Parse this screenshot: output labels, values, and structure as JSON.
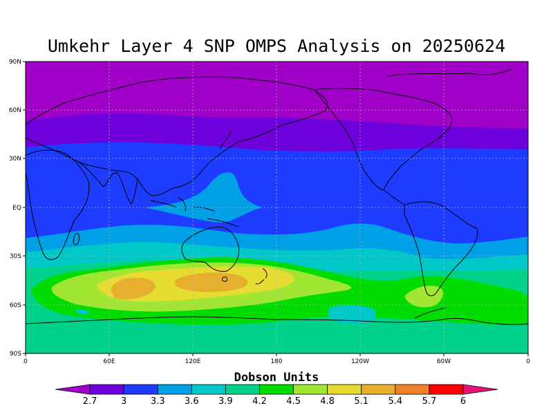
{
  "title": "Umkehr Layer 4 SNP OMPS Analysis on 20250624",
  "colorbar": {
    "title": "Dobson Units",
    "levels": [
      "2.7",
      "3",
      "3.3",
      "3.6",
      "3.9",
      "4.2",
      "4.5",
      "4.8",
      "5.1",
      "5.4",
      "5.7",
      "6"
    ],
    "colors": [
      "#a000c8",
      "#6e00dc",
      "#1e3cff",
      "#00a0e6",
      "#00c8c8",
      "#00d28c",
      "#00dc00",
      "#a0e632",
      "#e6dc32",
      "#e6af2d",
      "#f08228",
      "#fa0000",
      "#e6147a"
    ]
  },
  "axes": {
    "lat_labels": [
      "90N",
      "60N",
      "30N",
      "EQ",
      "30S",
      "60S",
      "90S"
    ],
    "lon_labels": [
      "0",
      "60E",
      "120E",
      "180",
      "120W",
      "60W",
      "0"
    ]
  }
}
